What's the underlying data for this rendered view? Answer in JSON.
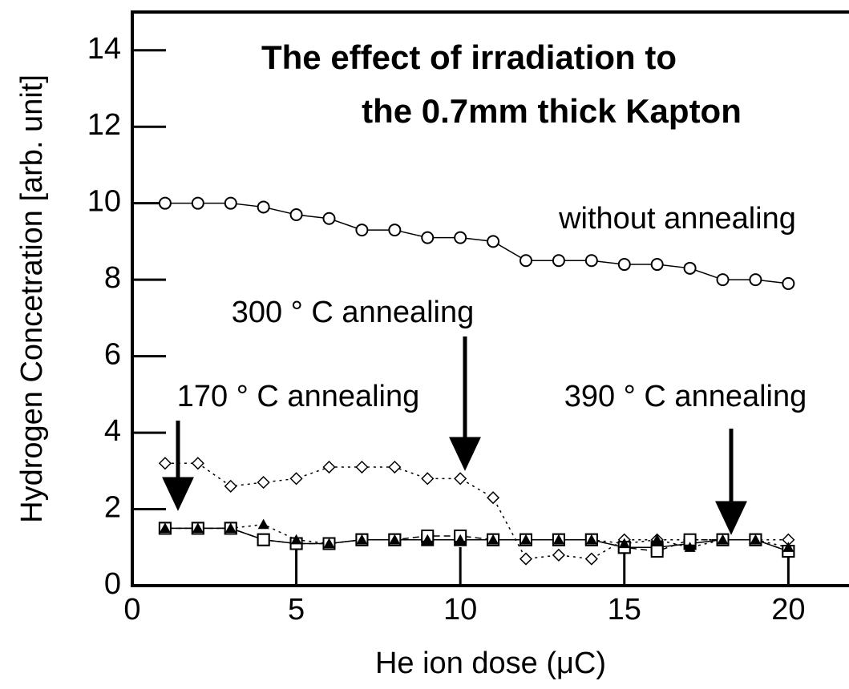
{
  "chart_data": {
    "type": "line",
    "title": [
      "The effect of irradiation to",
      "the 0.7mm thick Kapton"
    ],
    "x_label": "He ion dose (μC)",
    "y_label": "Hydrogen Concetration [arb. unit]",
    "x": [
      1,
      2,
      3,
      4,
      5,
      6,
      7,
      8,
      9,
      10,
      11,
      12,
      13,
      14,
      15,
      16,
      17,
      18,
      19,
      20
    ],
    "xlim": [
      0,
      21.8
    ],
    "xticks": [
      0,
      5,
      10,
      15,
      20
    ],
    "ylim": [
      0,
      15
    ],
    "yticks": [
      0,
      2,
      4,
      6,
      8,
      10,
      12,
      14
    ],
    "series": [
      {
        "name": "without annealing",
        "color": "#000000",
        "marker": "circle",
        "line_style": "solid",
        "values": [
          10,
          10,
          10,
          9.9,
          9.7,
          9.6,
          9.3,
          9.3,
          9.1,
          9.1,
          9.0,
          8.5,
          8.5,
          8.5,
          8.4,
          8.4,
          8.3,
          8.0,
          8.0,
          7.9
        ]
      },
      {
        "name": "300 ° C annealing",
        "color": "#000000",
        "marker": "diamond",
        "line_style": "dotted",
        "values": [
          3.2,
          3.2,
          2.6,
          2.7,
          2.8,
          3.1,
          3.1,
          3.1,
          2.8,
          2.8,
          2.3,
          0.7,
          0.8,
          0.7,
          1.2,
          1.2,
          1.2,
          1.2,
          1.2,
          1.2
        ]
      },
      {
        "name": "170 ° C annealing",
        "color": "#000000",
        "marker": "filled-square",
        "line_style": "solid",
        "values": [
          1.5,
          1.5,
          1.5,
          1.2,
          1.1,
          1.1,
          1.2,
          1.2,
          1.2,
          1.2,
          1.2,
          1.2,
          1.2,
          1.2,
          1.0,
          1.0,
          1.1,
          1.2,
          1.2,
          0.9
        ]
      },
      {
        "name": "390 ° C annealing",
        "color": "#000000",
        "marker": "square",
        "line_style": "dashed",
        "values": [
          1.5,
          1.5,
          1.5,
          1.2,
          1.1,
          1.1,
          1.2,
          1.2,
          1.3,
          1.3,
          1.2,
          1.2,
          1.2,
          1.2,
          1.0,
          0.9,
          1.2,
          1.2,
          1.2,
          0.9
        ]
      },
      {
        "color": "#000000",
        "marker": "triangle",
        "line_style": "dotted",
        "values": [
          1.5,
          1.5,
          1.5,
          1.6,
          1.2,
          1.1,
          1.2,
          1.2,
          1.2,
          1.2,
          1.2,
          1.2,
          1.2,
          1.2,
          1.1,
          1.2,
          1.0,
          1.2,
          1.2,
          1.0
        ]
      }
    ]
  }
}
